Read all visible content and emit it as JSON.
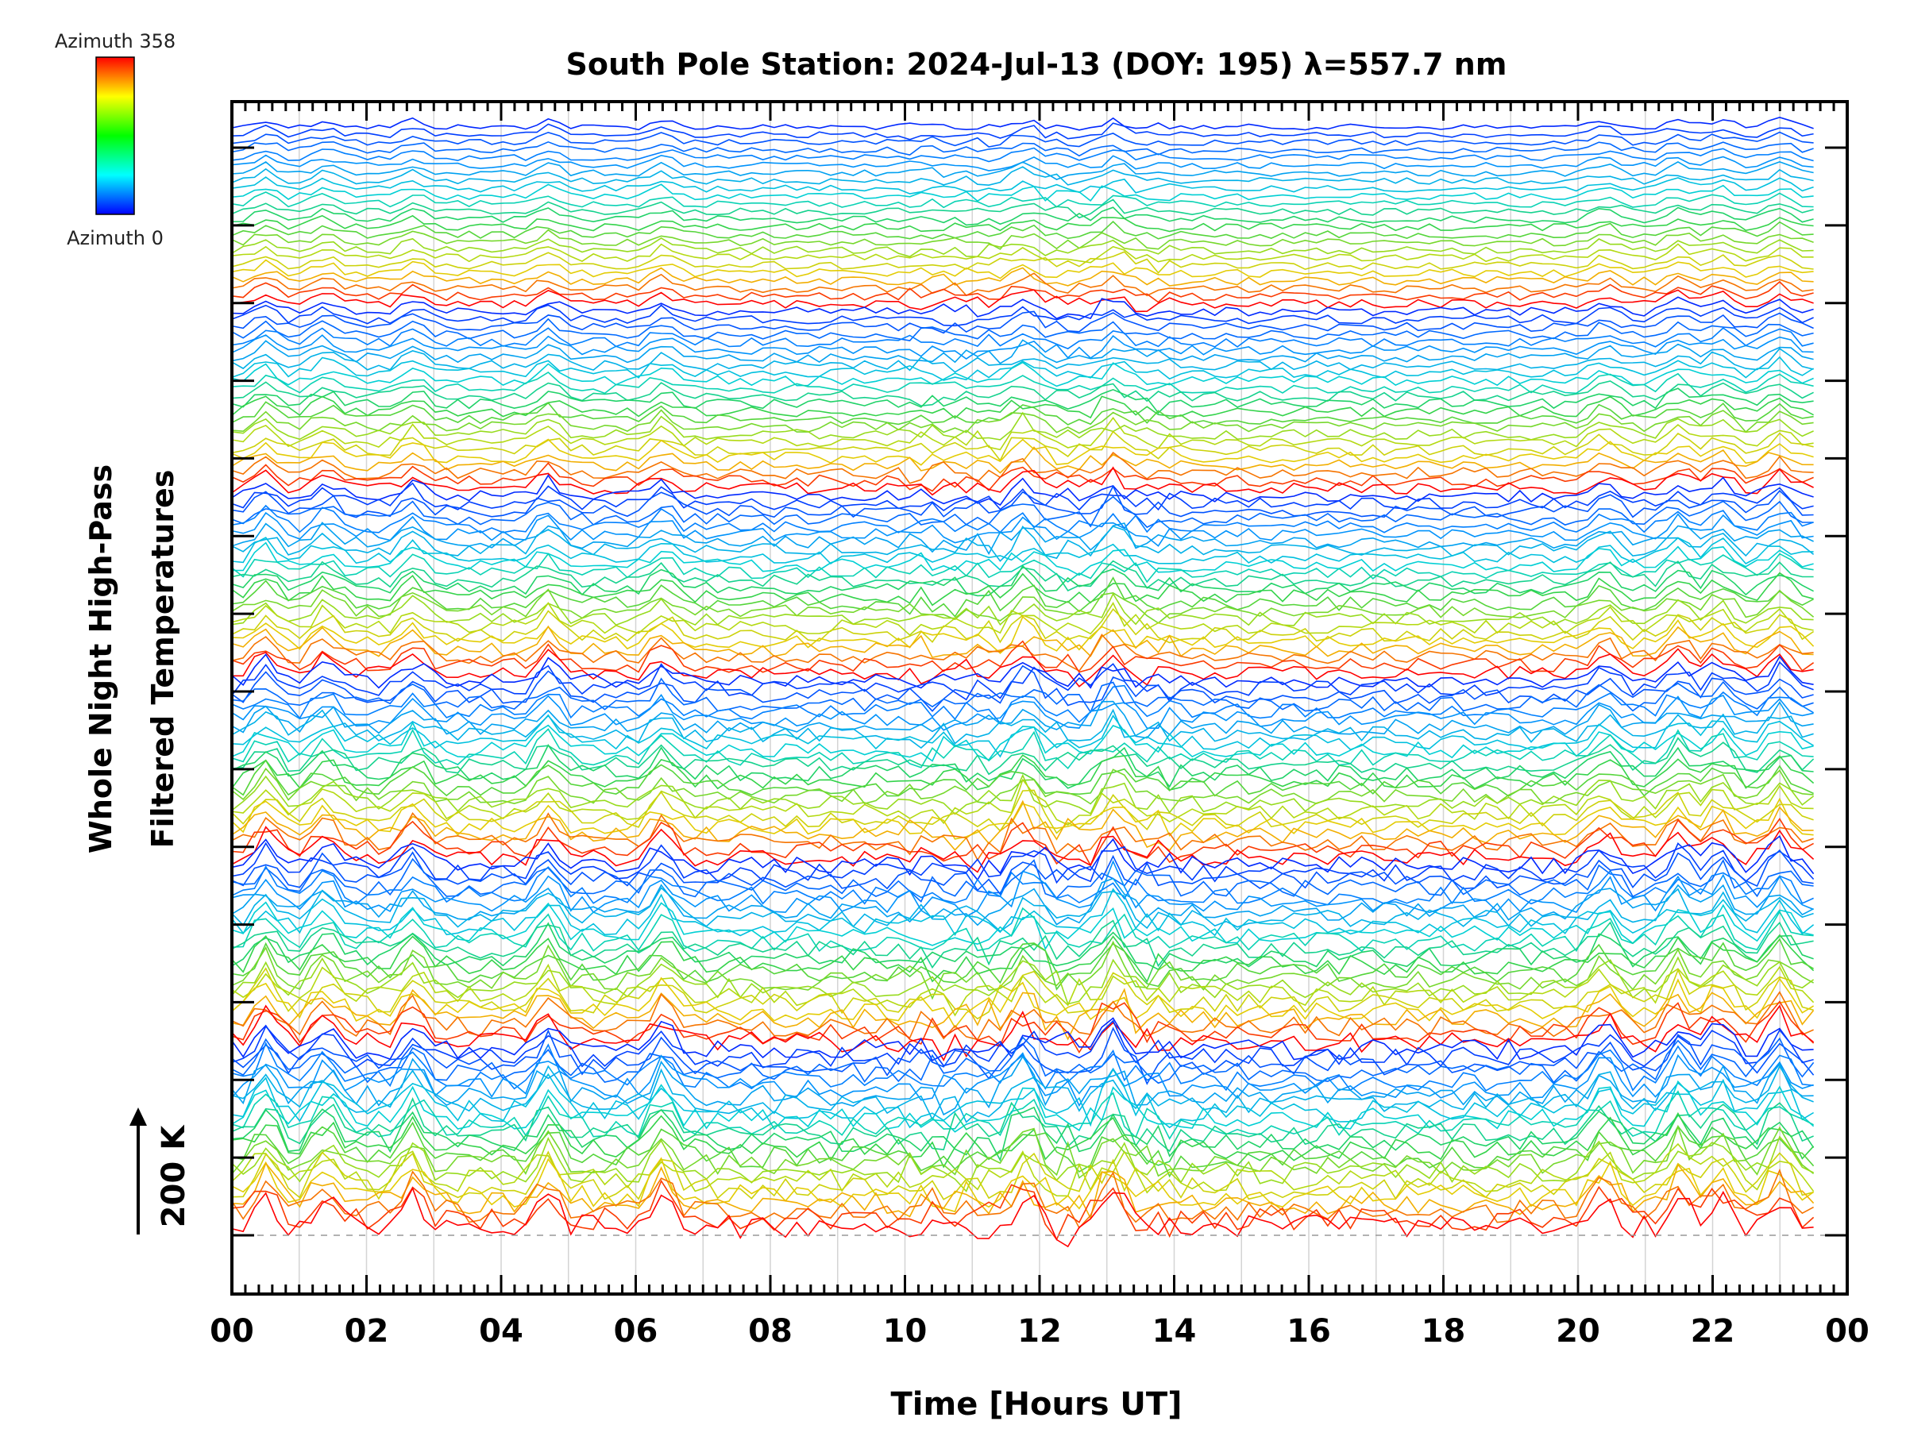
{
  "chart_data": {
    "type": "line",
    "title": "South Pole Station: 2024-Jul-13 (DOY: 195) λ=557.7 nm",
    "xlabel": "Time [Hours UT]",
    "ylabel_lines": [
      "Whole Night High-Pass",
      "Filtered Temperatures"
    ],
    "x_ticks": [
      "00",
      "02",
      "04",
      "06",
      "08",
      "10",
      "12",
      "14",
      "16",
      "18",
      "20",
      "22",
      "00"
    ],
    "xlim_hours": [
      0,
      24
    ],
    "data_end_hour": 23.5,
    "scale_bar": {
      "label": "200 K",
      "direction": "up"
    },
    "colorbar": {
      "top_label": "Azimuth 358",
      "bottom_label": "Azimuth 0",
      "colormap": [
        "#ff0000",
        "#ffff00",
        "#00ff00",
        "#00ffff",
        "#0000ff"
      ],
      "orientation": "red at top (358), blue at bottom (0)"
    },
    "grid": "vertical gridlines every hour",
    "stack": {
      "num_traces": 144,
      "order": "stacked groups, each sweeping azimuth from 0 (blue, top of group) to 358 (red, bottom of group)",
      "values": "stacked high-pass filtered temperature traces, values not labeled"
    },
    "notable_peaks_hours": [
      0.5,
      1.4,
      2.7,
      4.7,
      6.4,
      11.8,
      13.1,
      20.4,
      21.5,
      22.1,
      23.0
    ]
  }
}
